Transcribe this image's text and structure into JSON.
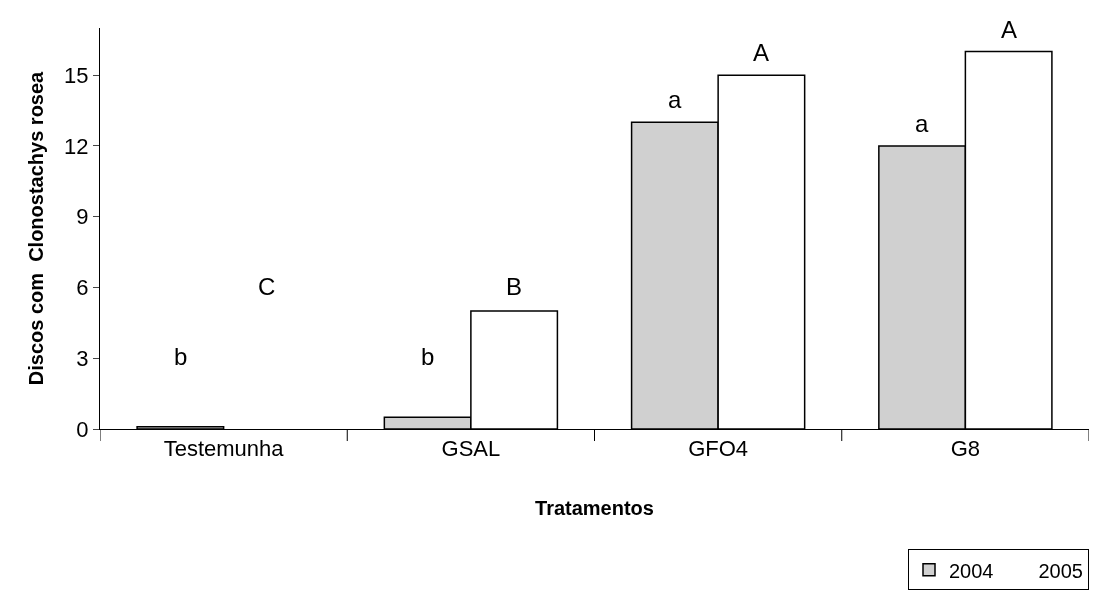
{
  "chart_data": {
    "type": "bar",
    "xlabel": "Tratamentos",
    "ylabel": "Discos com  Clonostachys rosea",
    "categories": [
      "Testemunha",
      "GSAL",
      "GFO4",
      "G8"
    ],
    "series": [
      {
        "name": "2004",
        "color": "#d0d0d0",
        "values": [
          0.1,
          0.5,
          13,
          12
        ]
      },
      {
        "name": "2005",
        "color": "#ffffff",
        "values": [
          0,
          5,
          15,
          16
        ]
      }
    ],
    "ylim": [
      0,
      17
    ],
    "yticks": [
      0,
      3,
      6,
      9,
      12,
      15
    ],
    "legend": "bottom right",
    "annotations": [
      "b",
      "C",
      "b",
      "B",
      "a",
      "A",
      "a",
      "A"
    ]
  }
}
